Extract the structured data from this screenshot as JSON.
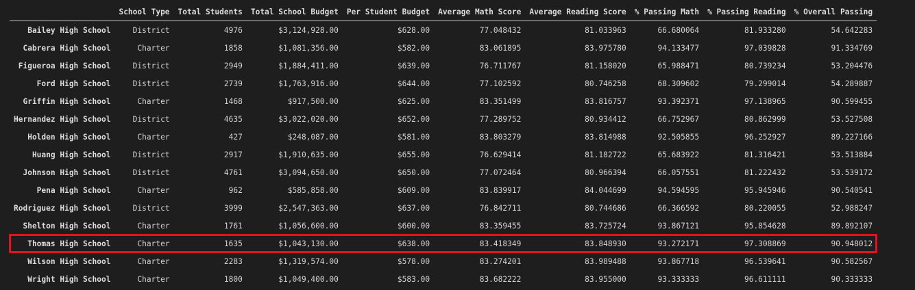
{
  "table": {
    "index_header": "",
    "columns": [
      "School Type",
      "Total Students",
      "Total School Budget",
      "Per Student Budget",
      "Average Math Score",
      "Average Reading Score",
      "% Passing Math",
      "% Passing Reading",
      "% Overall Passing"
    ],
    "rows": [
      {
        "name": "Bailey High School",
        "cells": [
          "District",
          "4976",
          "$3,124,928.00",
          "$628.00",
          "77.048432",
          "81.033963",
          "66.680064",
          "81.933280",
          "54.642283"
        ]
      },
      {
        "name": "Cabrera High School",
        "cells": [
          "Charter",
          "1858",
          "$1,081,356.00",
          "$582.00",
          "83.061895",
          "83.975780",
          "94.133477",
          "97.039828",
          "91.334769"
        ]
      },
      {
        "name": "Figueroa High School",
        "cells": [
          "District",
          "2949",
          "$1,884,411.00",
          "$639.00",
          "76.711767",
          "81.158020",
          "65.988471",
          "80.739234",
          "53.204476"
        ]
      },
      {
        "name": "Ford High School",
        "cells": [
          "District",
          "2739",
          "$1,763,916.00",
          "$644.00",
          "77.102592",
          "80.746258",
          "68.309602",
          "79.299014",
          "54.289887"
        ]
      },
      {
        "name": "Griffin High School",
        "cells": [
          "Charter",
          "1468",
          "$917,500.00",
          "$625.00",
          "83.351499",
          "83.816757",
          "93.392371",
          "97.138965",
          "90.599455"
        ]
      },
      {
        "name": "Hernandez High School",
        "cells": [
          "District",
          "4635",
          "$3,022,020.00",
          "$652.00",
          "77.289752",
          "80.934412",
          "66.752967",
          "80.862999",
          "53.527508"
        ]
      },
      {
        "name": "Holden High School",
        "cells": [
          "Charter",
          "427",
          "$248,087.00",
          "$581.00",
          "83.803279",
          "83.814988",
          "92.505855",
          "96.252927",
          "89.227166"
        ]
      },
      {
        "name": "Huang High School",
        "cells": [
          "District",
          "2917",
          "$1,910,635.00",
          "$655.00",
          "76.629414",
          "81.182722",
          "65.683922",
          "81.316421",
          "53.513884"
        ]
      },
      {
        "name": "Johnson High School",
        "cells": [
          "District",
          "4761",
          "$3,094,650.00",
          "$650.00",
          "77.072464",
          "80.966394",
          "66.057551",
          "81.222432",
          "53.539172"
        ]
      },
      {
        "name": "Pena High School",
        "cells": [
          "Charter",
          "962",
          "$585,858.00",
          "$609.00",
          "83.839917",
          "84.044699",
          "94.594595",
          "95.945946",
          "90.540541"
        ]
      },
      {
        "name": "Rodriguez High School",
        "cells": [
          "District",
          "3999",
          "$2,547,363.00",
          "$637.00",
          "76.842711",
          "80.744686",
          "66.366592",
          "80.220055",
          "52.988247"
        ]
      },
      {
        "name": "Shelton High School",
        "cells": [
          "Charter",
          "1761",
          "$1,056,600.00",
          "$600.00",
          "83.359455",
          "83.725724",
          "93.867121",
          "95.854628",
          "89.892107"
        ]
      },
      {
        "name": "Thomas High School",
        "cells": [
          "Charter",
          "1635",
          "$1,043,130.00",
          "$638.00",
          "83.418349",
          "83.848930",
          "93.272171",
          "97.308869",
          "90.948012"
        ],
        "highlighted": true
      },
      {
        "name": "Wilson High School",
        "cells": [
          "Charter",
          "2283",
          "$1,319,574.00",
          "$578.00",
          "83.274201",
          "83.989488",
          "93.867718",
          "96.539641",
          "90.582567"
        ]
      },
      {
        "name": "Wright High School",
        "cells": [
          "Charter",
          "1800",
          "$1,049,400.00",
          "$583.00",
          "83.682222",
          "83.955000",
          "93.333333",
          "96.611111",
          "90.333333"
        ]
      }
    ],
    "highlight_color": "#e0141e"
  }
}
